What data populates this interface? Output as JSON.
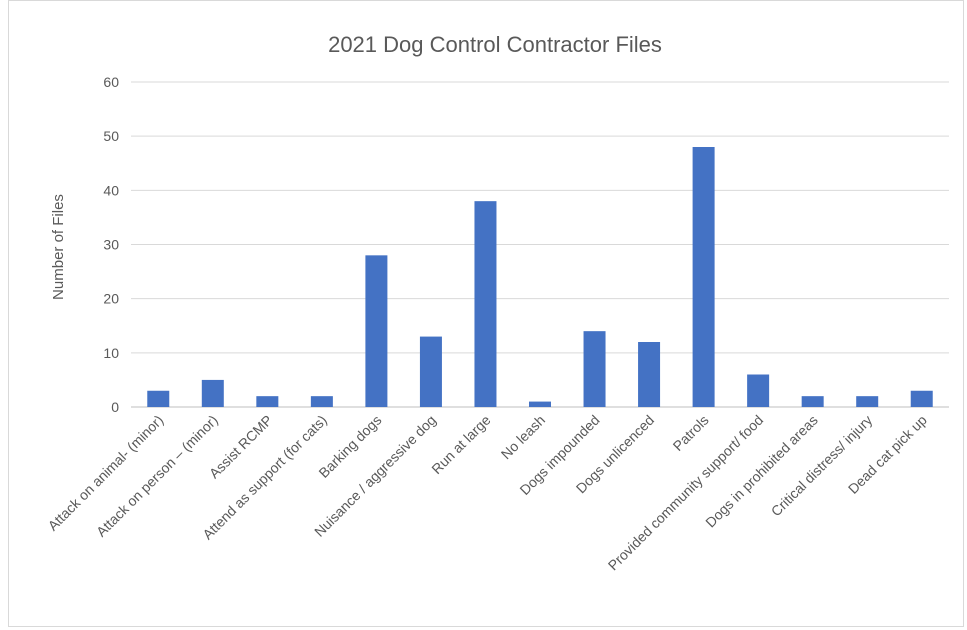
{
  "chart_data": {
    "type": "bar",
    "title": "2021 Dog Control Contractor Files",
    "xlabel": "",
    "ylabel": "Number of Files",
    "ylim": [
      0,
      60
    ],
    "yticks": [
      0,
      10,
      20,
      30,
      40,
      50,
      60
    ],
    "grid": true,
    "legend": "none",
    "categories": [
      "Attack on animal- (minor)",
      "Attack on person – (minor)",
      "Assist RCMP",
      "Attend as support (for cats)",
      "Barking dogs",
      "Nuisance / aggressive dog",
      "Run at large",
      "No leash",
      "Dogs impounded",
      "Dogs unlicenced",
      "Patrols",
      "Provided community support/ food",
      "Dogs in prohibited areas",
      "Critical distress/ injury",
      "Dead cat pick up"
    ],
    "values": [
      3,
      5,
      2,
      2,
      28,
      13,
      38,
      1,
      14,
      12,
      48,
      6,
      2,
      2,
      3
    ],
    "colors": {
      "bar": "#4472c4"
    }
  }
}
